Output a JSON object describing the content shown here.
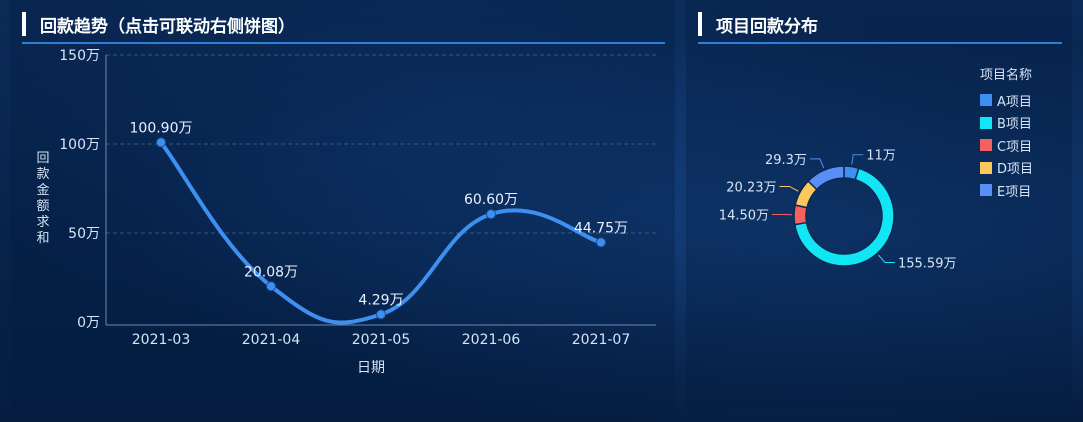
{
  "left_panel": {
    "title": "回款趋势（点击可联动右侧饼图）"
  },
  "right_panel": {
    "title": "项目回款分布"
  },
  "chart_data": [
    {
      "type": "line",
      "categories": [
        "2021-03",
        "2021-04",
        "2021-05",
        "2021-06",
        "2021-07"
      ],
      "values": [
        100.9,
        20.08,
        4.29,
        60.6,
        44.75
      ],
      "data_labels": [
        "100.90万",
        "20.08万",
        "4.29万",
        "60.60万",
        "44.75万"
      ],
      "xlabel": "日期",
      "ylabel": "回款金额求和",
      "ylim": [
        0,
        150
      ],
      "yticks": [
        "0万",
        "50万",
        "100万",
        "150万"
      ],
      "color": "#3d8ff0",
      "smooth": true,
      "grid": true
    },
    {
      "type": "pie",
      "donut": true,
      "legend_title": "项目名称",
      "legend_position": "right",
      "slices": [
        {
          "name": "A项目",
          "value": 11,
          "label": "11万",
          "color": "#3d8ff0"
        },
        {
          "name": "B项目",
          "value": 155.59,
          "label": "155.59万",
          "color": "#12e6f5"
        },
        {
          "name": "C项目",
          "value": 14.5,
          "label": "14.50万",
          "color": "#f56060"
        },
        {
          "name": "D项目",
          "value": 20.23,
          "label": "20.23万",
          "color": "#fcc85a"
        },
        {
          "name": "E项目",
          "value": 29.3,
          "label": "29.3万",
          "color": "#5b8ef5"
        }
      ]
    }
  ]
}
